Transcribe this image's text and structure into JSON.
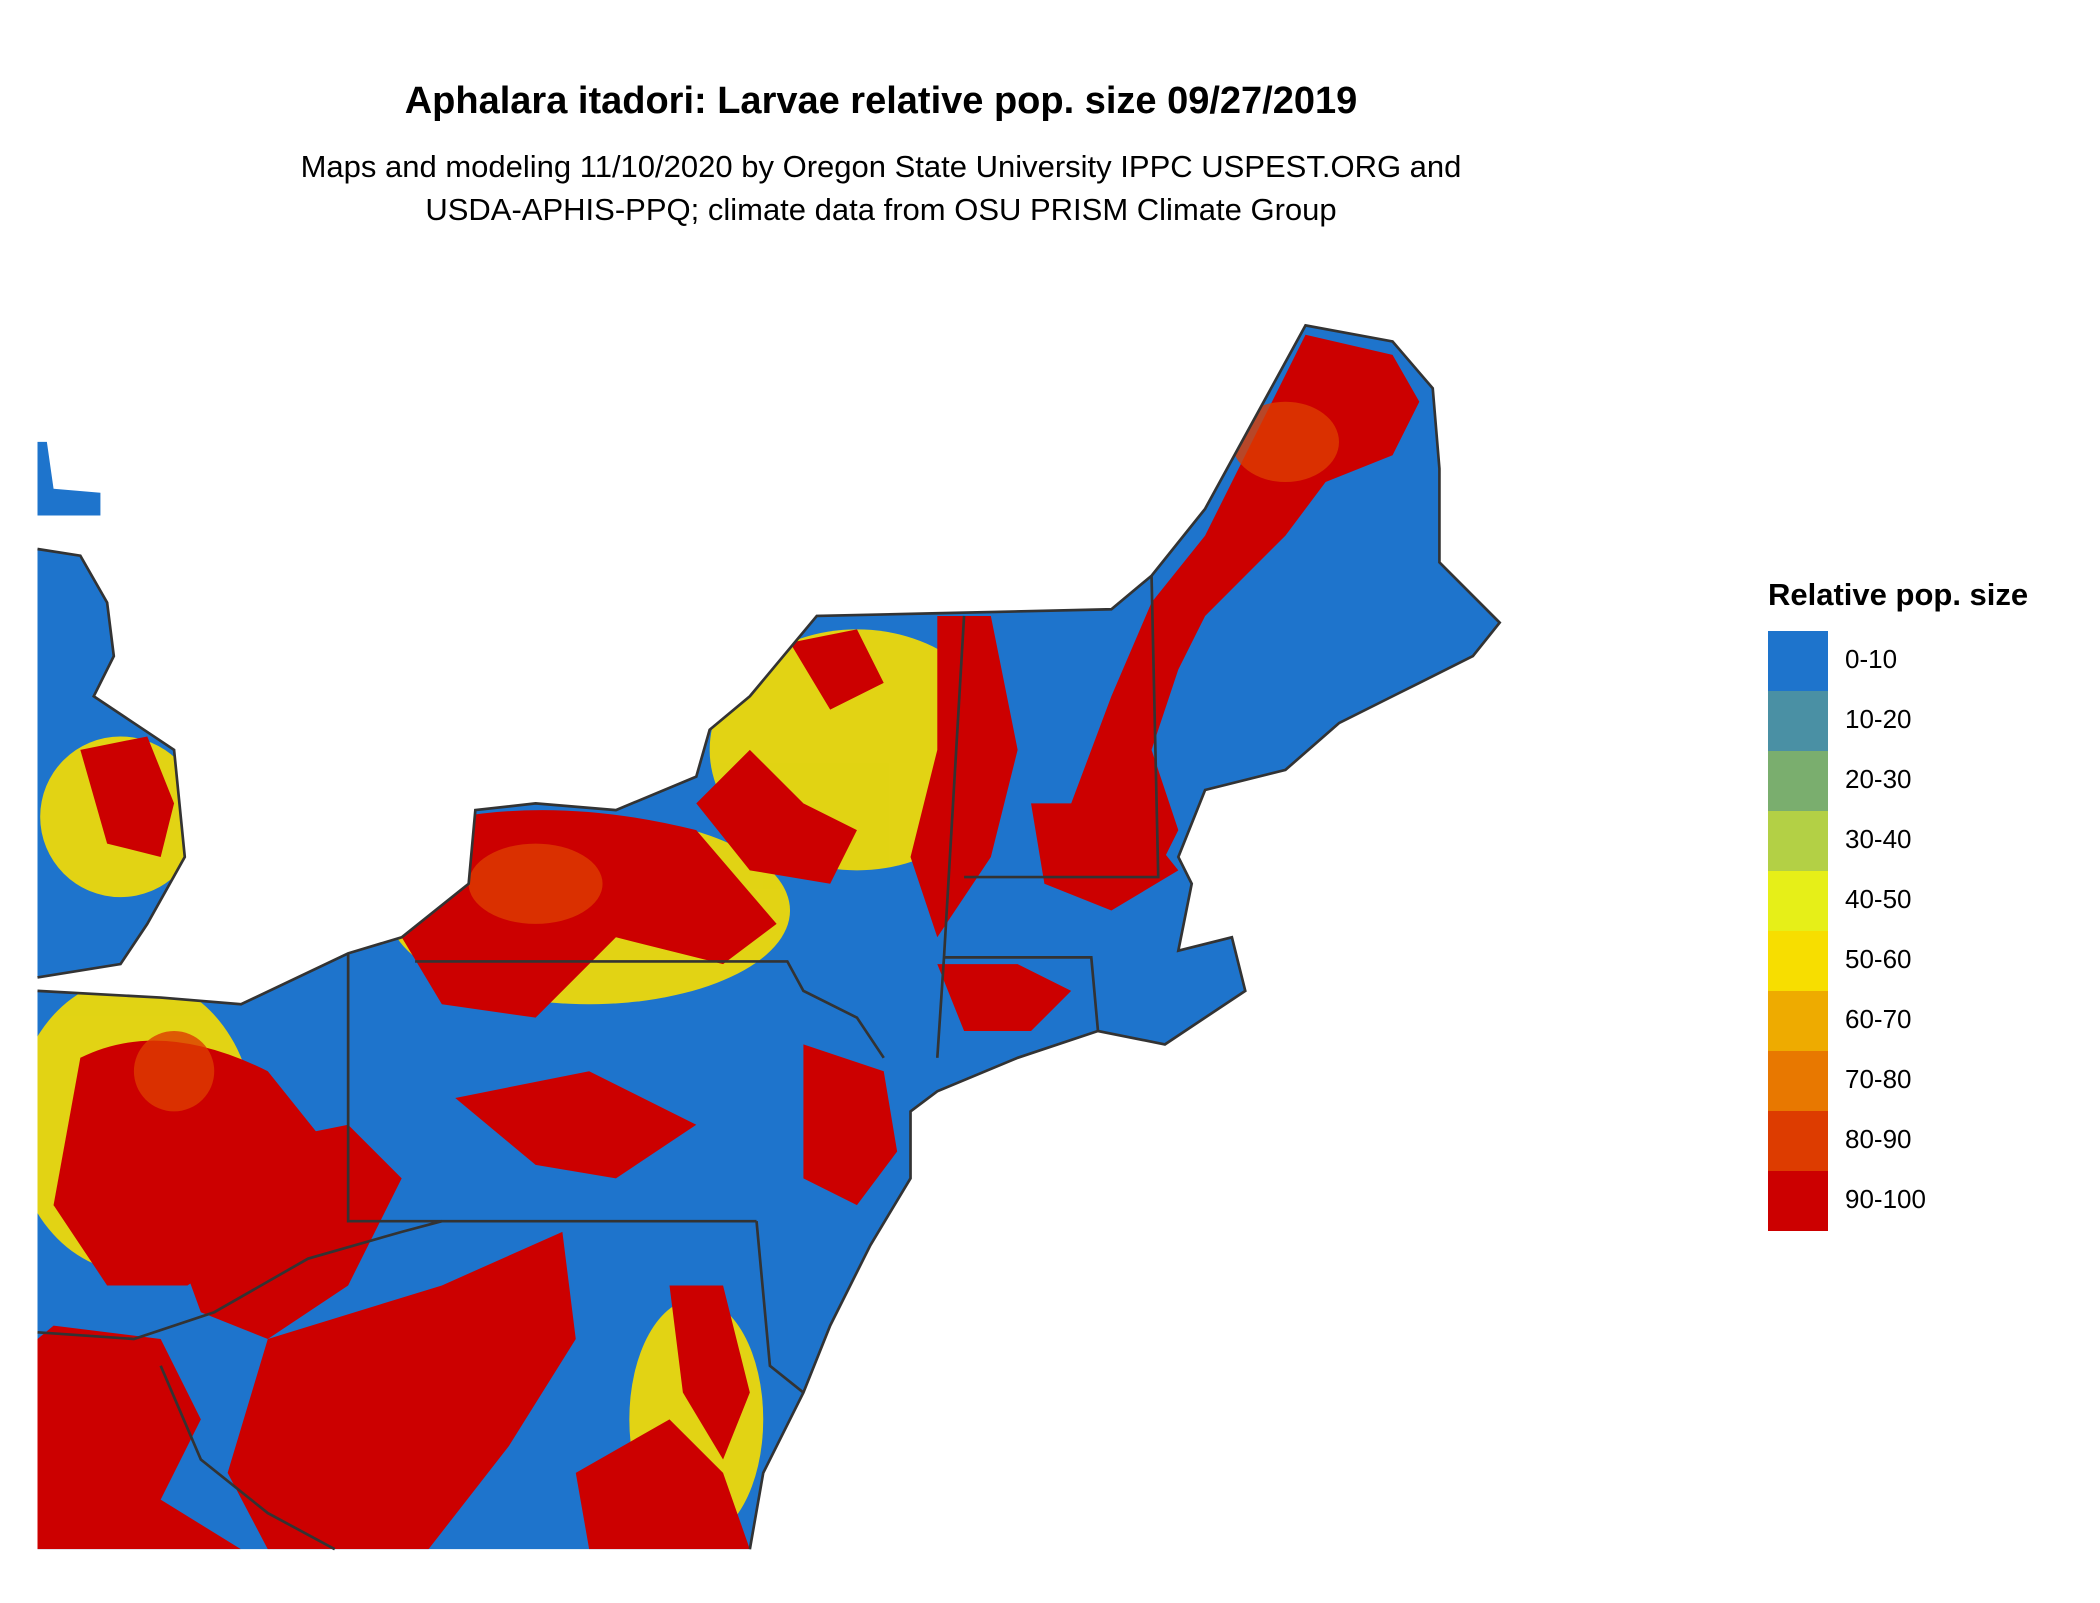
{
  "title": "Aphalara itadori: Larvae relative pop. size 09/27/2019",
  "subtitle": [
    "Maps and modeling 11/10/2020 by Oregon State University IPPC USPEST.ORG and",
    "USDA-APHIS-PPQ; climate data from OSU PRISM Climate Group"
  ],
  "legend": {
    "title": "Relative pop. size",
    "items": [
      {
        "label": "0-10",
        "color": "#1e74cc"
      },
      {
        "label": "10-20",
        "color": "#4a90a4"
      },
      {
        "label": "20-30",
        "color": "#7aae6e"
      },
      {
        "label": "30-40",
        "color": "#b3d045"
      },
      {
        "label": "40-50",
        "color": "#e6ef18"
      },
      {
        "label": "50-60",
        "color": "#f7de00"
      },
      {
        "label": "60-70",
        "color": "#eeab00"
      },
      {
        "label": "70-80",
        "color": "#e87800"
      },
      {
        "label": "80-90",
        "color": "#dd3c00"
      },
      {
        "label": "90-100",
        "color": "#cc0000"
      }
    ]
  }
}
